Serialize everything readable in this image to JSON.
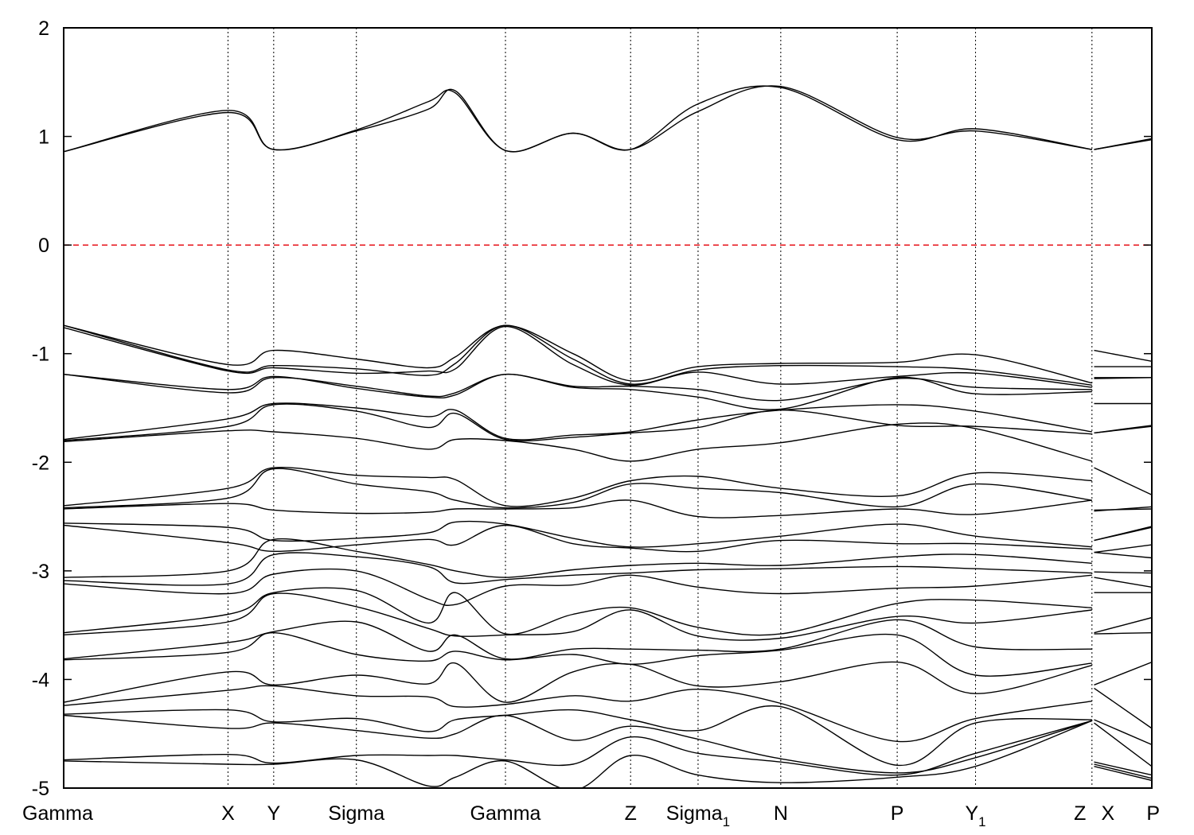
{
  "chart_data": {
    "type": "line",
    "title": "",
    "xlabel": "",
    "ylabel": "",
    "ylim": [
      -5,
      2
    ],
    "yticks": [
      -5,
      -4,
      -3,
      -2,
      -1,
      0,
      1,
      2
    ],
    "ytick_labels": [
      "-5",
      "-4",
      "-3",
      "-2",
      "-1",
      "0",
      "1",
      "2"
    ],
    "xlim": [
      0,
      1.0
    ],
    "grid": "vertical dotted lines at high-symmetry points",
    "reference_line": {
      "y": 0,
      "style": "dashed",
      "color": "#e8242a"
    },
    "kpoints": [
      {
        "pos": 0.0,
        "label": "Gamma",
        "sub": "",
        "anchor": "start"
      },
      {
        "pos": 0.151,
        "label": "X",
        "sub": "",
        "anchor": "middle"
      },
      {
        "pos": 0.193,
        "label": "Y",
        "sub": "",
        "anchor": "middle"
      },
      {
        "pos": 0.269,
        "label": "Sigma",
        "sub": "",
        "anchor": "middle"
      },
      {
        "pos": 0.406,
        "label": "Gamma",
        "sub": "",
        "anchor": "middle"
      },
      {
        "pos": 0.521,
        "label": "Z",
        "sub": "",
        "anchor": "middle"
      },
      {
        "pos": 0.583,
        "label": "Sigma",
        "sub": "1",
        "anchor": "middle"
      },
      {
        "pos": 0.659,
        "label": "N",
        "sub": "",
        "anchor": "middle"
      },
      {
        "pos": 0.766,
        "label": "P",
        "sub": "",
        "anchor": "middle"
      },
      {
        "pos": 0.838,
        "label": "Y",
        "sub": "1",
        "anchor": "middle"
      },
      {
        "pos": 0.945,
        "label": "Z",
        "sub": "",
        "anchor": "middle"
      },
      {
        "pos": 0.945,
        "label": "X",
        "sub": "",
        "anchor": "middle"
      },
      {
        "pos": 1.0,
        "label": "P",
        "sub": "",
        "anchor": "end"
      }
    ],
    "series": [
      {
        "values": [
          0.86,
          1.24,
          0.88,
          1.05,
          1.25,
          1.42,
          0.87,
          1.03,
          0.88,
          1.23,
          1.46,
          0.99,
          1.05,
          0.88,
          0.88,
          0.98
        ]
      },
      {
        "values": [
          0.86,
          1.22,
          0.88,
          1.06,
          1.32,
          1.4,
          0.87,
          1.03,
          0.88,
          1.3,
          1.45,
          0.97,
          1.07,
          0.88,
          0.88,
          0.97
        ]
      },
      {
        "values": [
          -0.74,
          -1.1,
          -0.97,
          -1.05,
          -1.13,
          -1.03,
          -0.74,
          -1.0,
          -1.25,
          -1.12,
          -1.09,
          -1.08,
          -1.01,
          -1.27,
          -0.97,
          -1.07
        ]
      },
      {
        "values": [
          -0.74,
          -1.15,
          -1.11,
          -1.14,
          -1.2,
          -1.09,
          -0.74,
          -1.05,
          -1.28,
          -1.15,
          -1.11,
          -1.12,
          -1.15,
          -1.29,
          -1.12,
          -1.12
        ]
      },
      {
        "values": [
          -0.76,
          -1.16,
          -1.13,
          -1.18,
          -1.16,
          -1.14,
          -0.75,
          -1.1,
          -1.29,
          -1.17,
          -1.28,
          -1.21,
          -1.18,
          -1.31,
          -1.22,
          -1.22
        ]
      },
      {
        "values": [
          -1.19,
          -1.36,
          -1.22,
          -1.3,
          -1.39,
          -1.36,
          -1.19,
          -1.3,
          -1.3,
          -1.33,
          -1.43,
          -1.23,
          -1.31,
          -1.33,
          -1.23,
          -1.22
        ]
      },
      {
        "values": [
          -1.19,
          -1.33,
          -1.21,
          -1.32,
          -1.4,
          -1.38,
          -1.19,
          -1.31,
          -1.33,
          -1.4,
          -1.51,
          -1.22,
          -1.37,
          -1.35,
          -1.46,
          -1.46
        ]
      },
      {
        "values": [
          -1.79,
          -1.6,
          -1.46,
          -1.5,
          -1.58,
          -1.52,
          -1.78,
          -1.75,
          -1.72,
          -1.61,
          -1.52,
          -1.47,
          -1.53,
          -1.72,
          -1.73,
          -1.66
        ]
      },
      {
        "values": [
          -1.8,
          -1.67,
          -1.47,
          -1.53,
          -1.68,
          -1.55,
          -1.79,
          -1.77,
          -1.73,
          -1.68,
          -1.52,
          -1.66,
          -1.67,
          -1.74,
          -1.73,
          -1.67
        ]
      },
      {
        "values": [
          -1.81,
          -1.71,
          -1.72,
          -1.78,
          -1.88,
          -1.79,
          -1.8,
          -1.88,
          -1.99,
          -1.88,
          -1.82,
          -1.65,
          -1.69,
          -1.99,
          -2.05,
          -2.3
        ]
      },
      {
        "values": [
          -2.4,
          -2.24,
          -2.05,
          -2.12,
          -2.14,
          -2.16,
          -2.4,
          -2.33,
          -2.17,
          -2.13,
          -2.24,
          -2.31,
          -2.1,
          -2.17,
          -2.44,
          -2.43
        ]
      },
      {
        "values": [
          -2.42,
          -2.33,
          -2.06,
          -2.2,
          -2.27,
          -2.35,
          -2.42,
          -2.37,
          -2.2,
          -2.24,
          -2.28,
          -2.41,
          -2.2,
          -2.35,
          -2.45,
          -2.41
        ]
      },
      {
        "values": [
          -2.43,
          -2.38,
          -2.44,
          -2.47,
          -2.46,
          -2.43,
          -2.43,
          -2.42,
          -2.35,
          -2.5,
          -2.49,
          -2.43,
          -2.48,
          -2.35,
          -2.72,
          -2.6
        ]
      },
      {
        "values": [
          -2.56,
          -2.6,
          -2.72,
          -2.7,
          -2.65,
          -2.55,
          -2.57,
          -2.7,
          -2.78,
          -2.75,
          -2.68,
          -2.57,
          -2.68,
          -2.78,
          -2.72,
          -2.59
        ]
      },
      {
        "values": [
          -2.58,
          -2.74,
          -2.82,
          -2.76,
          -2.71,
          -2.76,
          -2.58,
          -2.75,
          -2.79,
          -2.82,
          -2.72,
          -2.75,
          -2.75,
          -2.8,
          -2.83,
          -2.76
        ]
      },
      {
        "values": [
          -3.06,
          -3.0,
          -2.71,
          -2.82,
          -2.94,
          -3.0,
          -3.06,
          -2.99,
          -2.95,
          -2.93,
          -2.95,
          -2.87,
          -2.85,
          -2.93,
          -2.83,
          -2.88
        ]
      },
      {
        "values": [
          -3.09,
          -3.12,
          -2.85,
          -2.87,
          -2.96,
          -3.11,
          -3.08,
          -3.04,
          -3.02,
          -2.99,
          -2.98,
          -2.96,
          -2.98,
          -3.02,
          -3.01,
          -3.02
        ]
      },
      {
        "values": [
          -3.12,
          -3.21,
          -3.03,
          -3.0,
          -3.26,
          -3.31,
          -3.14,
          -3.13,
          -3.04,
          -3.15,
          -3.21,
          -3.16,
          -3.14,
          -3.04,
          -3.06,
          -3.15
        ]
      },
      {
        "values": [
          -3.57,
          -3.4,
          -3.2,
          -3.18,
          -3.48,
          -3.2,
          -3.58,
          -3.4,
          -3.34,
          -3.52,
          -3.58,
          -3.3,
          -3.27,
          -3.34,
          -3.2,
          -3.2
        ]
      },
      {
        "values": [
          -3.59,
          -3.47,
          -3.21,
          -3.33,
          -3.53,
          -3.6,
          -3.59,
          -3.56,
          -3.36,
          -3.6,
          -3.62,
          -3.42,
          -3.48,
          -3.36,
          -3.57,
          -3.43
        ]
      },
      {
        "values": [
          -3.81,
          -3.66,
          -3.56,
          -3.47,
          -3.74,
          -3.59,
          -3.81,
          -3.72,
          -3.72,
          -3.73,
          -3.72,
          -3.45,
          -3.7,
          -3.72,
          -3.58,
          -3.57
        ]
      },
      {
        "values": [
          -3.82,
          -3.75,
          -3.57,
          -3.77,
          -3.83,
          -3.74,
          -3.82,
          -3.77,
          -3.86,
          -3.78,
          -3.73,
          -3.59,
          -3.96,
          -3.85,
          -4.05,
          -3.84
        ]
      },
      {
        "values": [
          -4.21,
          -3.93,
          -4.05,
          -3.96,
          -4.04,
          -3.85,
          -4.21,
          -3.93,
          -3.86,
          -4.06,
          -4.02,
          -3.84,
          -4.13,
          -3.87,
          -4.08,
          -4.45
        ]
      },
      {
        "values": [
          -4.24,
          -4.1,
          -4.06,
          -4.15,
          -4.16,
          -4.25,
          -4.23,
          -4.15,
          -4.2,
          -4.09,
          -4.22,
          -4.57,
          -4.36,
          -4.2,
          -4.37,
          -4.6
        ]
      },
      {
        "values": [
          -4.32,
          -4.28,
          -4.39,
          -4.36,
          -4.48,
          -4.37,
          -4.33,
          -4.28,
          -4.37,
          -4.47,
          -4.25,
          -4.79,
          -4.4,
          -4.37,
          -4.4,
          -4.8
        ]
      },
      {
        "values": [
          -4.33,
          -4.45,
          -4.4,
          -4.47,
          -4.54,
          -4.5,
          -4.33,
          -4.56,
          -4.43,
          -4.55,
          -4.73,
          -4.86,
          -4.72,
          -4.38,
          -4.76,
          -4.88
        ]
      },
      {
        "values": [
          -4.74,
          -4.69,
          -4.77,
          -4.7,
          -4.7,
          -4.7,
          -4.74,
          -4.78,
          -4.53,
          -4.68,
          -4.76,
          -4.88,
          -4.68,
          -4.38,
          -4.78,
          -4.91
        ]
      },
      {
        "values": [
          -4.75,
          -4.78,
          -4.78,
          -4.74,
          -4.98,
          -4.9,
          -4.75,
          -5.02,
          -4.7,
          -4.88,
          -4.95,
          -4.9,
          -4.8,
          -4.38,
          -4.8,
          -4.93
        ]
      }
    ]
  }
}
